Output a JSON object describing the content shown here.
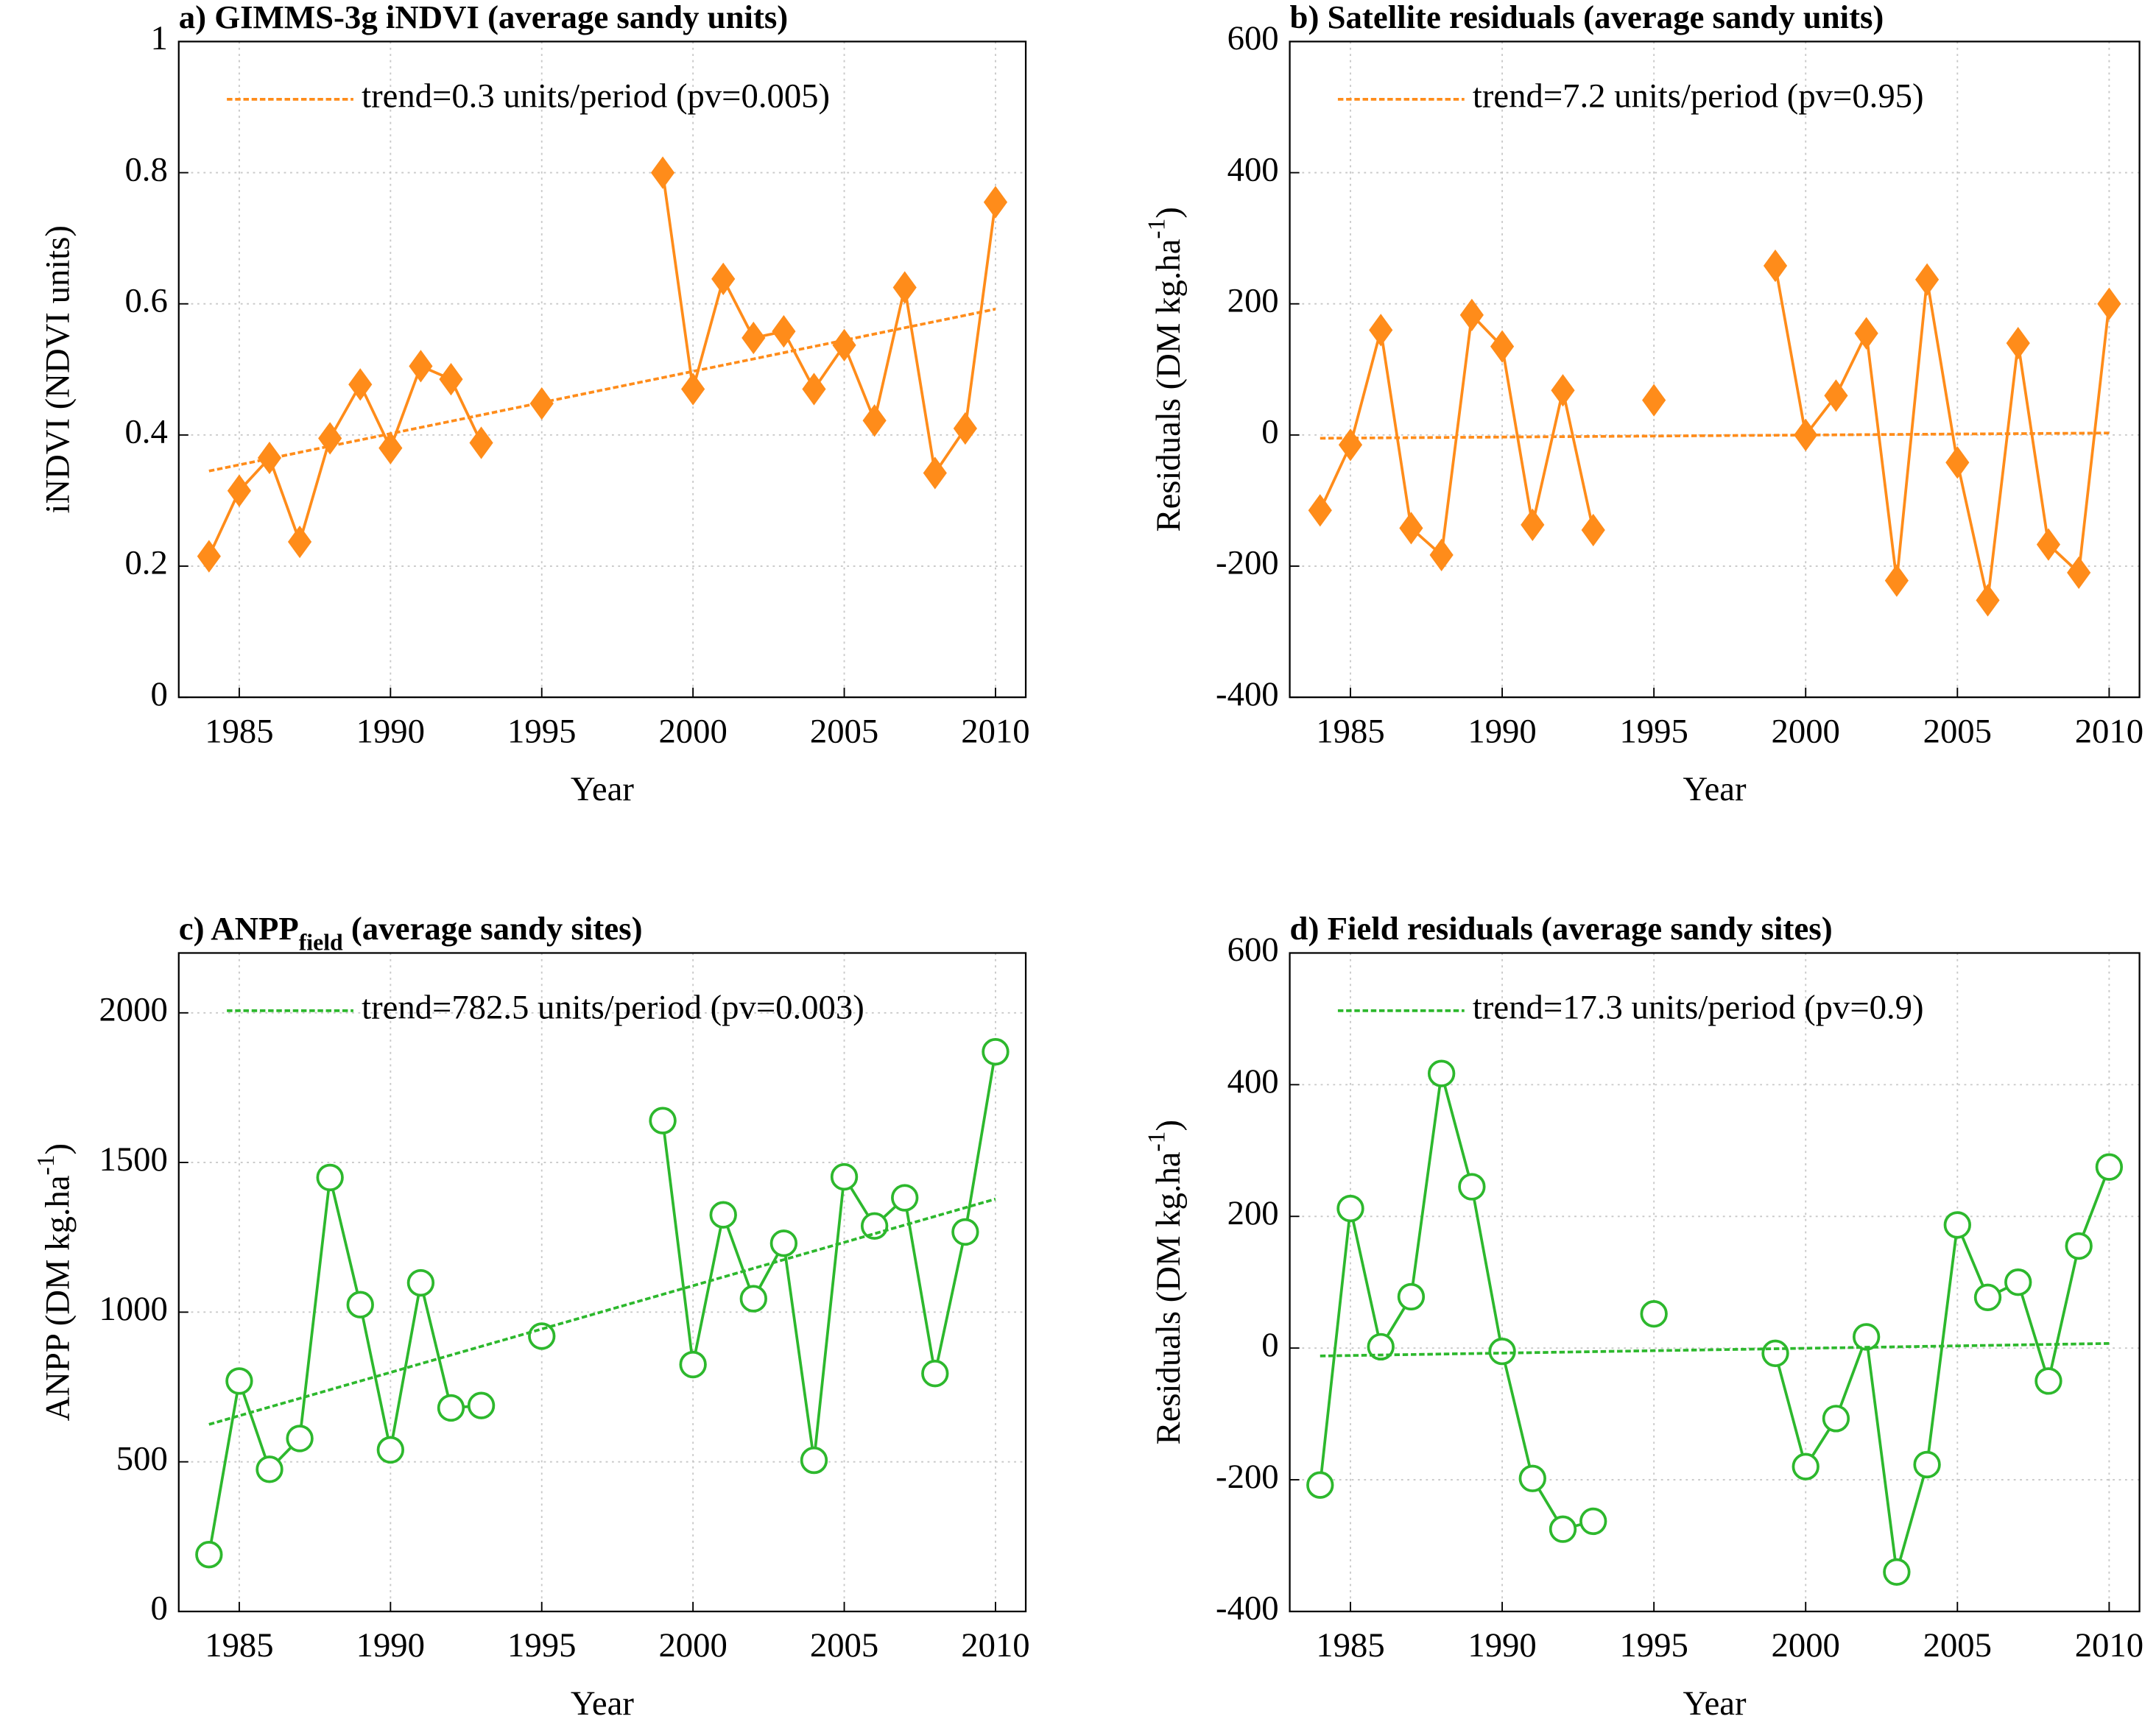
{
  "chart_data": [
    {
      "type": "line",
      "title": "a) GIMMS-3g iNDVI (average sandy units)",
      "xlabel": "Year",
      "ylabel": "iNDVI (NDVI units)",
      "x": [
        1984,
        1985,
        1986,
        1987,
        1988,
        1989,
        1990,
        1991,
        1992,
        1993,
        1994,
        1995,
        1996,
        1997,
        1998,
        1999,
        2000,
        2001,
        2002,
        2003,
        2004,
        2005,
        2006,
        2007,
        2008,
        2009,
        2010
      ],
      "xlim": [
        1983,
        2011
      ],
      "xticks": [
        1985,
        1990,
        1995,
        2000,
        2005,
        2010
      ],
      "ylim": [
        0,
        1
      ],
      "yticks": [
        0,
        0.2,
        0.4,
        0.6,
        0.8,
        1
      ],
      "grid": true,
      "series": [
        {
          "color": "#ff8c1a",
          "marker": "diamond",
          "values": [
            0.215,
            0.315,
            0.365,
            0.237,
            0.395,
            0.477,
            0.38,
            0.505,
            0.485,
            0.388,
            null,
            0.448,
            null,
            null,
            null,
            0.8,
            0.47,
            0.638,
            0.548,
            0.558,
            0.47,
            0.537,
            0.422,
            0.625,
            0.342,
            0.41,
            0.755
          ]
        },
        {
          "name": "trend=0.3 units/period (pv=0.005)",
          "color": "#ff8c1a",
          "dashed": true,
          "x": [
            1984,
            2010
          ],
          "values": [
            0.345,
            0.592
          ]
        }
      ]
    },
    {
      "type": "line",
      "title": "b) Satellite residuals (average sandy units)",
      "xlabel": "Year",
      "ylabel": "Residuals (DM kg.ha",
      "ylabel_sup": "-1",
      "ylabel_end": ")",
      "x": [
        1984,
        1985,
        1986,
        1987,
        1988,
        1989,
        1990,
        1991,
        1992,
        1993,
        1994,
        1995,
        1996,
        1997,
        1998,
        1999,
        2000,
        2001,
        2002,
        2003,
        2004,
        2005,
        2006,
        2007,
        2008,
        2009,
        2010
      ],
      "xlim": [
        1983,
        2011
      ],
      "xticks": [
        1985,
        1990,
        1995,
        2000,
        2005,
        2010
      ],
      "ylim": [
        -400,
        600
      ],
      "yticks": [
        -400,
        -200,
        0,
        200,
        400,
        600
      ],
      "grid": true,
      "series": [
        {
          "color": "#ff8c1a",
          "marker": "diamond",
          "values": [
            -115,
            -15,
            160,
            -142,
            -183,
            183,
            135,
            -137,
            68,
            -145,
            null,
            53,
            null,
            null,
            null,
            258,
            0,
            60,
            155,
            -222,
            237,
            -42,
            -252,
            140,
            -167,
            -210,
            200
          ]
        },
        {
          "name": "trend=7.2 units/period (pv=0.95)",
          "color": "#ff8c1a",
          "dashed": true,
          "x": [
            1984,
            2010
          ],
          "values": [
            -5,
            3
          ]
        }
      ]
    },
    {
      "type": "line",
      "title": "c) ANPP",
      "title_sub": "field",
      "title_end": " (average sandy sites)",
      "xlabel": "Year",
      "ylabel": "ANPP (DM kg.ha",
      "ylabel_sup": "-1",
      "ylabel_end": ")",
      "x": [
        1984,
        1985,
        1986,
        1987,
        1988,
        1989,
        1990,
        1991,
        1992,
        1993,
        1994,
        1995,
        1996,
        1997,
        1998,
        1999,
        2000,
        2001,
        2002,
        2003,
        2004,
        2005,
        2006,
        2007,
        2008,
        2009,
        2010
      ],
      "xlim": [
        1983,
        2011
      ],
      "xticks": [
        1985,
        1990,
        1995,
        2000,
        2005,
        2010
      ],
      "ylim": [
        0,
        2200
      ],
      "yticks": [
        0,
        500,
        1000,
        1500,
        2000
      ],
      "grid": true,
      "series": [
        {
          "color": "#2db82d",
          "marker": "circle",
          "values": [
            190,
            770,
            475,
            578,
            1450,
            1025,
            540,
            1098,
            680,
            688,
            null,
            920,
            null,
            null,
            null,
            1640,
            825,
            1325,
            1045,
            1230,
            505,
            1452,
            1288,
            1382,
            795,
            1268,
            1870
          ]
        },
        {
          "name": "trend=782.5 units/period (pv=0.003)",
          "color": "#2db82d",
          "dashed": true,
          "x": [
            1984,
            2010
          ],
          "values": [
            625,
            1378
          ]
        }
      ]
    },
    {
      "type": "line",
      "title": "d) Field residuals (average sandy sites)",
      "xlabel": "Year",
      "ylabel": "Residuals (DM kg.ha",
      "ylabel_sup": "-1",
      "ylabel_end": ")",
      "x": [
        1984,
        1985,
        1986,
        1987,
        1988,
        1989,
        1990,
        1991,
        1992,
        1993,
        1994,
        1995,
        1996,
        1997,
        1998,
        1999,
        2000,
        2001,
        2002,
        2003,
        2004,
        2005,
        2006,
        2007,
        2008,
        2009,
        2010
      ],
      "xlim": [
        1983,
        2011
      ],
      "xticks": [
        1985,
        1990,
        1995,
        2000,
        2005,
        2010
      ],
      "ylim": [
        -400,
        600
      ],
      "yticks": [
        -400,
        -200,
        0,
        200,
        400,
        600
      ],
      "grid": true,
      "series": [
        {
          "color": "#2db82d",
          "marker": "circle",
          "values": [
            -208,
            212,
            2,
            78,
            417,
            245,
            -5,
            -198,
            -275,
            -263,
            null,
            52,
            null,
            null,
            null,
            -8,
            -180,
            -107,
            17,
            -340,
            -177,
            187,
            77,
            100,
            -50,
            155,
            275
          ]
        },
        {
          "name": "trend=17.3 units/period (pv=0.9)",
          "color": "#2db82d",
          "dashed": true,
          "x": [
            1984,
            2010
          ],
          "values": [
            -12,
            7
          ]
        }
      ]
    }
  ]
}
